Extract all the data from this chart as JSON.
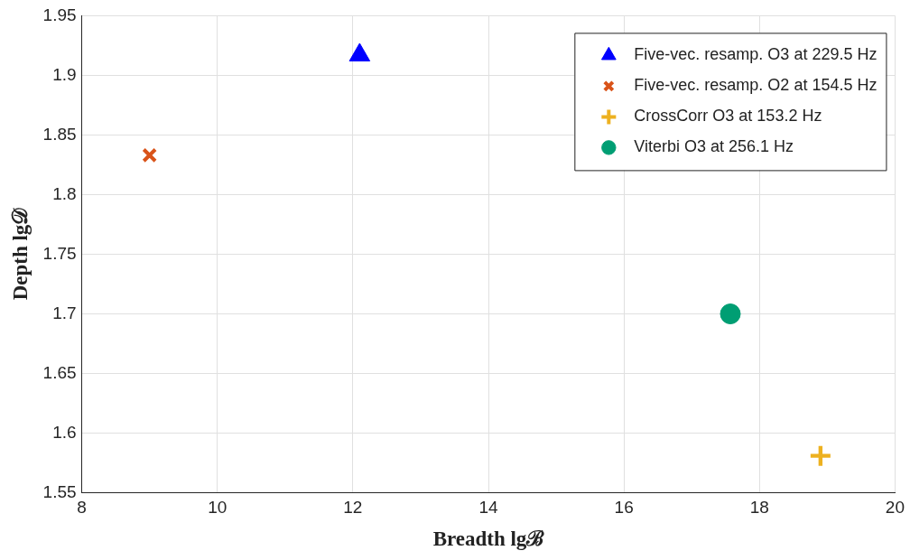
{
  "chart_data": {
    "type": "scatter",
    "xlabel": "Breadth lgℬ",
    "ylabel": "Depth lg𝒟",
    "series": [
      {
        "name": "Five-vec. resamp. O3 at 229.5 Hz",
        "color": "#0000ff",
        "marker": "triangle",
        "x": [
          12.1
        ],
        "values": [
          1.917
        ]
      },
      {
        "name": "Five-vec. resamp. O2 at 154.5 Hz",
        "color": "#d95319",
        "marker": "cross",
        "x": [
          9.0
        ],
        "values": [
          1.833
        ]
      },
      {
        "name": "CrossCorr O3 at 153.2 Hz",
        "color": "#edb120",
        "x": [
          18.9
        ],
        "values": [
          1.581
        ]
      },
      {
        "name": "Viterbi O3 at 256.1 Hz",
        "color": "#009e73",
        "marker": "circle",
        "x": [
          17.57
        ],
        "values": [
          1.7
        ]
      }
    ],
    "xlim": [
      8,
      20
    ],
    "xticks": [
      8,
      10,
      12,
      14,
      16,
      18,
      20
    ],
    "ylim": [
      1.55,
      1.95
    ],
    "yticks": [
      1.55,
      1.6,
      1.65,
      1.7,
      1.75,
      1.8,
      1.85,
      1.9,
      1.95
    ],
    "grid": true,
    "legend": "top right"
  }
}
